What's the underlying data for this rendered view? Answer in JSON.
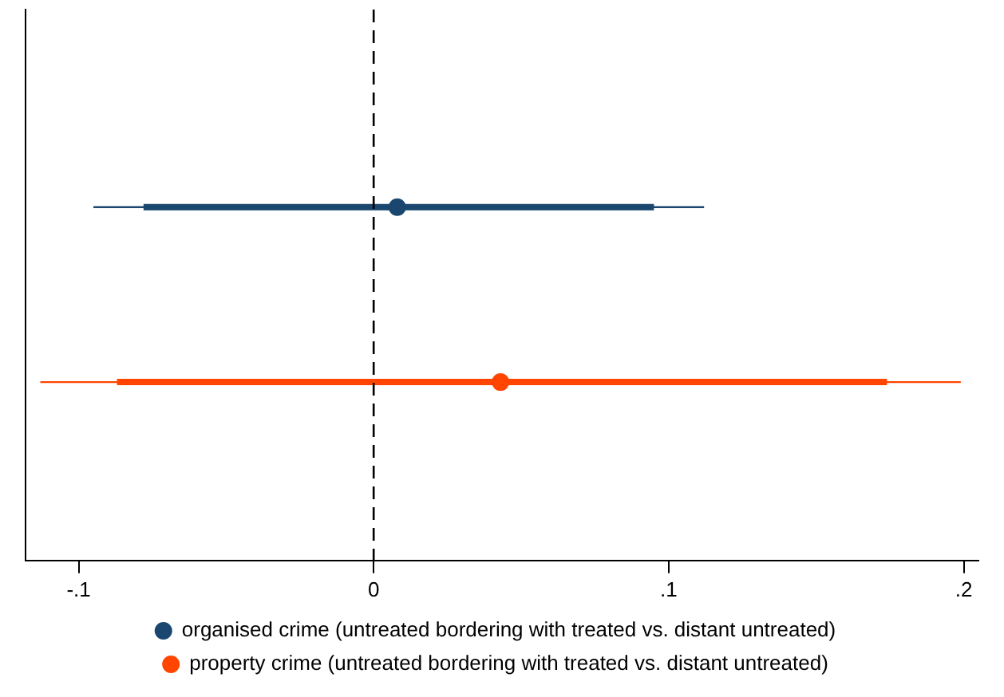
{
  "chart_data": {
    "type": "scatter",
    "orientation": "horizontal",
    "categories": [
      null,
      null
    ],
    "xlim": [
      -0.118,
      0.205
    ],
    "xticks": [
      {
        "value": -0.1,
        "label": "-.1"
      },
      0,
      {
        "value": 0.1,
        "label": ".1"
      },
      {
        "value": 0.2,
        "label": ".2"
      }
    ],
    "grid": false,
    "legend": "bottom",
    "marker": "circle",
    "ref_lines": [
      {
        "axis": "x",
        "value": 0,
        "line_style": "dashed",
        "color": "#000000"
      }
    ],
    "series": [
      {
        "type": "bar",
        "color": "#1a476f",
        "base": [
          -0.078,
          null
        ],
        "values": [
          0.173,
          null
        ]
      },
      {
        "type": "bar",
        "color": "#ff4500",
        "base": [
          null,
          -0.087
        ],
        "values": [
          null,
          0.261
        ]
      },
      {
        "name": "organised crime (untreated bordering with treated vs. distant untreated)",
        "color": "#1a476f",
        "values": [
          0.008,
          null
        ],
        "errors": [
          [
            -0.095,
            0.112
          ],
          null
        ]
      },
      {
        "name": "property crime (untreated bordering with treated vs. distant untreated)",
        "color": "#ff4500",
        "values": [
          null,
          0.043
        ],
        "errors": [
          null,
          [
            -0.113,
            0.199
          ]
        ]
      }
    ]
  }
}
